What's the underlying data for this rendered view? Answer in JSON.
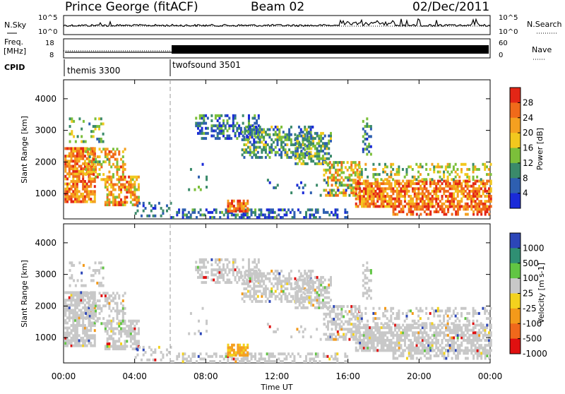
{
  "header": {
    "station": "Prince George (fitACF)",
    "beam": "Beam 02",
    "date": "02/Dec/2011"
  },
  "panels": {
    "nsky_label": "N.Sky",
    "nsearch_label": "N.Search",
    "nsky_ticks": [
      "10^5",
      "10^0"
    ],
    "nsearch_ticks": [
      "10^5",
      "10^0"
    ],
    "freq_label_1": "Freq.",
    "freq_label_2": "[MHz]",
    "freq_ticks": [
      "18",
      "8"
    ],
    "nave_label": "Nave",
    "nave_ticks": [
      "60",
      "0"
    ],
    "cpid_label": "CPID",
    "cpid_modes": [
      {
        "name": "themis 3300",
        "start_hour": 0,
        "end_hour": 6
      },
      {
        "name": "twofsound 3501",
        "start_hour": 6,
        "end_hour": 24
      }
    ]
  },
  "chart_data": [
    {
      "type": "heatmap",
      "title": "Power",
      "ylabel": "Slant Range [km]",
      "xlabel": "Time UT",
      "xlim_hours": [
        0,
        24
      ],
      "ylim_km": [
        200,
        4600
      ],
      "x_ticks": [
        "00:00",
        "04:00",
        "08:00",
        "12:00",
        "16:00",
        "20:00",
        "00:00"
      ],
      "y_ticks": [
        1000,
        2000,
        3000,
        4000
      ],
      "colorbar_label": "Power [dB]",
      "colorbar_ticks": [
        4,
        8,
        12,
        16,
        20,
        24,
        28
      ],
      "colorbar_colors": [
        "#1a2ad8",
        "#2e5fb0",
        "#3a8a6a",
        "#7cbf3a",
        "#f2c81e",
        "#f5a020",
        "#f06a1a",
        "#e32616"
      ],
      "mode_change_hour": 6
    },
    {
      "type": "heatmap",
      "title": "Velocity",
      "ylabel": "Slant Range [km]",
      "xlabel": "Time UT",
      "xlim_hours": [
        0,
        24
      ],
      "ylim_km": [
        200,
        4600
      ],
      "x_ticks": [
        "00:00",
        "04:00",
        "08:00",
        "12:00",
        "16:00",
        "20:00",
        "00:00"
      ],
      "y_ticks": [
        1000,
        2000,
        3000,
        4000
      ],
      "colorbar_label": "Velocity [m s-1]",
      "colorbar_ticks": [
        "1000",
        "500",
        "100",
        "25",
        "-25",
        "-100",
        "-500",
        "-1000"
      ],
      "colorbar_colors": [
        "#2c46b8",
        "#2f8f73",
        "#61c543",
        "#c8c8c8",
        "#f3d21e",
        "#f39a1a",
        "#f0681b",
        "#e01010"
      ],
      "mode_change_hour": 6
    }
  ]
}
